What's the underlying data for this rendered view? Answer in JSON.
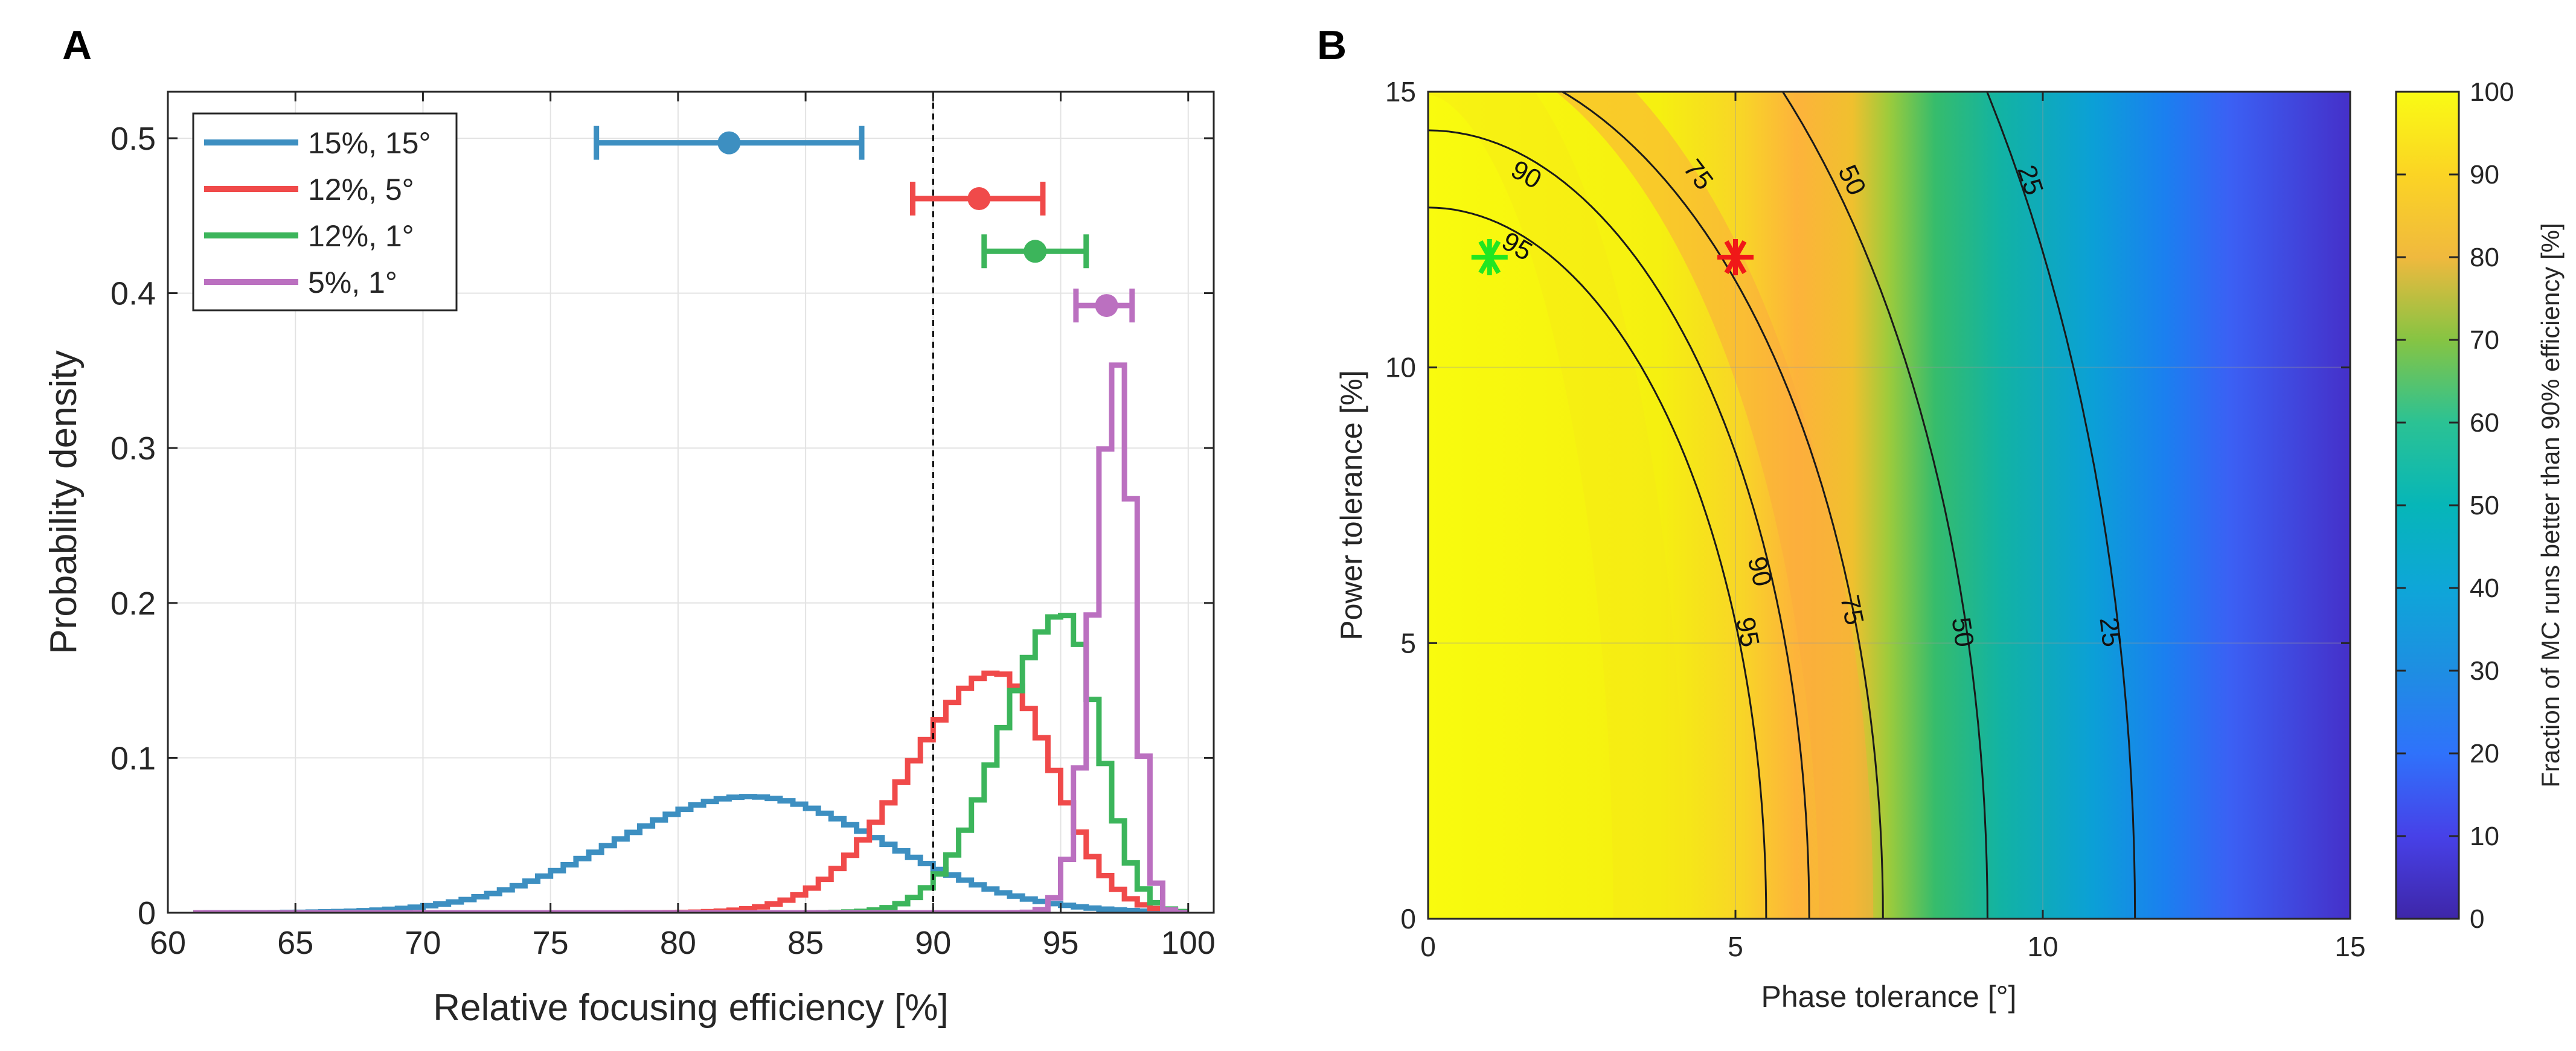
{
  "chart_data": [
    {
      "panel": "A",
      "type": "line",
      "subtype": "stairs histogram with error bars",
      "title": "",
      "xlabel": "Relative focusing efficiency [%]",
      "ylabel": "Probability density",
      "xlim": [
        60,
        101
      ],
      "ylim": [
        0,
        0.53
      ],
      "xticks": [
        60,
        65,
        70,
        75,
        80,
        85,
        90,
        95,
        100
      ],
      "yticks": [
        0,
        0.1,
        0.2,
        0.3,
        0.4,
        0.5
      ],
      "xtick_labels": [
        "60",
        "65",
        "70",
        "75",
        "80",
        "85",
        "90",
        "95",
        "100"
      ],
      "ytick_labels": [
        "0",
        "0.1",
        "0.2",
        "0.3",
        "0.4",
        "0.5"
      ],
      "grid": true,
      "legend": "top-left",
      "reference_line": {
        "x": 90,
        "style": "dashed",
        "color": "#000000"
      },
      "series": [
        {
          "name": "15%, 15°",
          "color": "#3d8fc1",
          "shape": "gaussian",
          "mean": 82.8,
          "sd": 5.3,
          "peak": 0.075,
          "range": [
            61,
            100
          ],
          "errorbar": {
            "y": 0.497,
            "center": 82,
            "low": 76.8,
            "high": 87.2
          }
        },
        {
          "name": "12%, 5°",
          "color": "#f04a4a",
          "shape": "skewed",
          "mode": 92.5,
          "sd_left": 3.4,
          "sd_right": 2.2,
          "peak": 0.155,
          "range": [
            61,
            100
          ],
          "errorbar": {
            "y": 0.461,
            "center": 91.8,
            "low": 89.2,
            "high": 94.3
          }
        },
        {
          "name": "12%, 1°",
          "color": "#3cb55b",
          "shape": "skewed",
          "mode": 95.1,
          "sd_left": 2.4,
          "sd_right": 1.4,
          "peak": 0.193,
          "range": [
            61,
            100
          ],
          "errorbar": {
            "y": 0.427,
            "center": 94,
            "low": 92,
            "high": 96
          }
        },
        {
          "name": "5%, 1°",
          "color": "#bb70c0",
          "shape": "skewed",
          "mode": 97.3,
          "sd_left": 0.95,
          "sd_right": 0.6,
          "peak": 0.354,
          "range": [
            61,
            100
          ],
          "errorbar": {
            "y": 0.392,
            "center": 96.8,
            "low": 95.6,
            "high": 97.8
          }
        }
      ]
    },
    {
      "panel": "B",
      "type": "heatmap",
      "subtype": "filled contour map with labelled contour lines",
      "title": "",
      "xlabel": "Phase tolerance [°]",
      "ylabel": "Power tolerance [%]",
      "xlim": [
        0,
        15
      ],
      "ylim": [
        0,
        15
      ],
      "xticks": [
        0,
        5,
        10,
        15
      ],
      "yticks": [
        0,
        5,
        10,
        15
      ],
      "xtick_labels": [
        "0",
        "5",
        "10",
        "15"
      ],
      "ytick_labels": [
        "0",
        "5",
        "10",
        "15"
      ],
      "grid": true,
      "colorbar": {
        "label": "Fraction of MC runs  better than 90% efficiency [%]",
        "range": [
          0,
          100
        ],
        "ticks": [
          0,
          10,
          20,
          30,
          40,
          50,
          60,
          70,
          80,
          90,
          100
        ],
        "tick_labels": [
          "0",
          "10",
          "20",
          "30",
          "40",
          "50",
          "60",
          "70",
          "80",
          "90",
          "100"
        ],
        "colormap": "parula"
      },
      "contours": [
        {
          "level": 95,
          "label": "95",
          "x_at_power_0": 5.5,
          "y_at_phase_0": 12.9,
          "label_positions": [
            [
              1.45,
              12.2
            ],
            [
              5.2,
              5.2
            ]
          ]
        },
        {
          "level": 90,
          "label": "90",
          "x_at_power_0": 6.2,
          "y_at_phase_0": 14.3,
          "label_positions": [
            [
              1.6,
              13.5
            ],
            [
              5.4,
              6.3
            ]
          ]
        },
        {
          "level": 75,
          "label": "75",
          "x_at_power_0": 7.4,
          "y_at_phase_0": 15.7,
          "label_positions": [
            [
              4.4,
              13.5
            ],
            [
              6.9,
              5.6
            ]
          ]
        },
        {
          "level": 50,
          "label": "50",
          "x_at_power_0": 9.1,
          "y_at_phase_0": 19.4,
          "label_positions": [
            [
              6.9,
              13.4
            ],
            [
              8.7,
              5.2
            ]
          ]
        },
        {
          "level": 25,
          "label": "25",
          "x_at_power_0": 11.5,
          "y_at_phase_0": 24.5,
          "label_positions": [
            [
              9.8,
              13.4
            ],
            [
              11.1,
              5.2
            ]
          ]
        }
      ],
      "markers": [
        {
          "x": 1,
          "y": 12,
          "symbol": "asterisk",
          "color": "#21e621",
          "matches": "12%, 1°"
        },
        {
          "x": 5,
          "y": 12,
          "symbol": "asterisk",
          "color": "#f01818",
          "matches": "12%, 5°"
        }
      ]
    }
  ],
  "panel_labels": {
    "a": "A",
    "b": "B"
  }
}
